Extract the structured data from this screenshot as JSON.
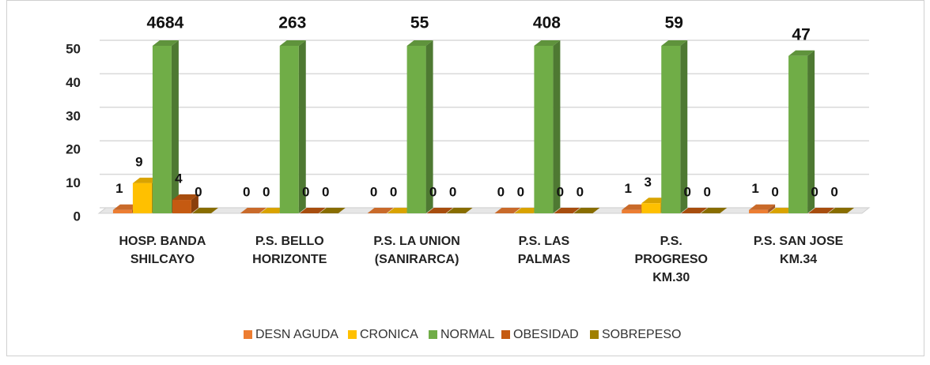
{
  "chart_data": {
    "type": "bar3d",
    "categories": [
      "HOSP. BANDA\nSHILCAYO",
      "P.S. BELLO\nHORIZONTE",
      "P.S. LA UNION\n(SANIRARCA)",
      "P.S. LAS\nPALMAS",
      "P.S.\nPROGRESO\nKM.30",
      "P.S. SAN JOSE\nKM.34"
    ],
    "series": [
      {
        "name": "DESN AGUDA",
        "color": "#ed7d31",
        "values": [
          1,
          0,
          0,
          0,
          1,
          1
        ]
      },
      {
        "name": "CRONICA",
        "color": "#ffc000",
        "values": [
          9,
          0,
          0,
          0,
          3,
          0
        ]
      },
      {
        "name": "NORMAL",
        "color": "#70ad47",
        "values": [
          4684,
          263,
          55,
          408,
          59,
          47
        ]
      },
      {
        "name": "OBESIDAD",
        "color": "#c55a11",
        "values": [
          4,
          0,
          0,
          0,
          0,
          0
        ]
      },
      {
        "name": "SOBREPESO",
        "color": "#a08000",
        "values": [
          0,
          0,
          0,
          0,
          0,
          0
        ]
      }
    ],
    "ylim": [
      0,
      50
    ],
    "yticks": [
      0,
      10,
      20,
      30,
      40,
      50
    ],
    "grid": true,
    "legend": "bottom"
  }
}
